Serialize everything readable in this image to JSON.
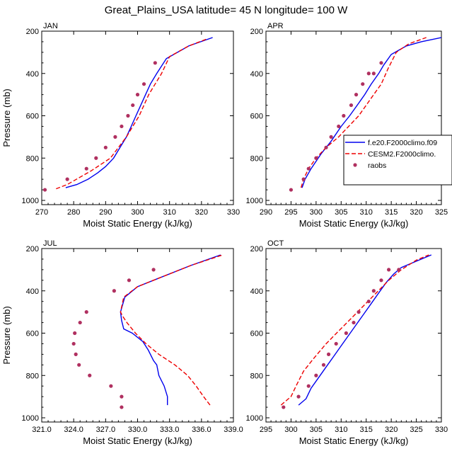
{
  "figure": {
    "title": "Great_Plains_USA  latitude= 45 N longitude= 100 W"
  },
  "colors": {
    "model1": "#0000ee",
    "model2": "#ee0000",
    "raobs": "#b03060",
    "axis": "#000000"
  },
  "legend": {
    "entries": [
      {
        "label": "f.e20.F2000climo.f09",
        "series": "model1"
      },
      {
        "label": "CESM2.F2000climo.",
        "series": "model2"
      },
      {
        "label": "raobs",
        "series": "raobs"
      }
    ]
  },
  "chart_data": [
    {
      "type": "line",
      "panel": "JAN",
      "title": "JAN",
      "xlabel": "Moist Static Energy (kJ/kg)",
      "ylabel": "Pressure (mb)",
      "xlim": [
        270,
        330
      ],
      "ylim": [
        1020,
        200
      ],
      "xticks": [
        270,
        280,
        290,
        300,
        310,
        320,
        330
      ],
      "xtick_labels": [
        "270",
        "280",
        "290",
        "300",
        "310",
        "320",
        "330"
      ],
      "yticks": [
        200,
        400,
        600,
        800,
        1000
      ],
      "ytick_labels": [
        "200",
        "400",
        "600",
        "800",
        "1000"
      ],
      "series": [
        {
          "name": "f.e20.F2000climo.f09",
          "style": "solid",
          "color_key": "model1",
          "x": [
            277.5,
            281,
            284.5,
            287.5,
            290,
            292.5,
            294.5,
            296.5,
            298,
            299.5,
            301,
            302.5,
            304,
            306,
            309,
            316,
            323.5
          ],
          "y": [
            940,
            925,
            900,
            870,
            840,
            800,
            750,
            700,
            650,
            600,
            550,
            500,
            450,
            400,
            330,
            270,
            230
          ]
        },
        {
          "name": "CESM2.F2000climo.",
          "style": "dashed",
          "color_key": "model2",
          "x": [
            274.5,
            278,
            282,
            285.5,
            288.5,
            291.5,
            294,
            296.5,
            298.5,
            300.5,
            302,
            303.5,
            305.5,
            307.5,
            310,
            316,
            322
          ],
          "y": [
            945,
            925,
            890,
            860,
            830,
            800,
            750,
            700,
            650,
            600,
            550,
            500,
            450,
            400,
            320,
            270,
            235
          ]
        },
        {
          "name": "raobs",
          "style": "points",
          "color_key": "raobs",
          "x": [
            271,
            278,
            284,
            287,
            290,
            293,
            295,
            297,
            298.5,
            300,
            302,
            305.5
          ],
          "y": [
            950,
            900,
            850,
            800,
            750,
            700,
            650,
            600,
            550,
            500,
            450,
            350
          ]
        }
      ]
    },
    {
      "type": "line",
      "panel": "APR",
      "title": "APR",
      "xlabel": "Moist Static Energy (kJ/kg)",
      "ylabel": "",
      "xlim": [
        290,
        325
      ],
      "ylim": [
        1020,
        200
      ],
      "xticks": [
        290,
        295,
        300,
        305,
        310,
        315,
        320,
        325
      ],
      "xtick_labels": [
        "290",
        "295",
        "300",
        "305",
        "310",
        "315",
        "320",
        "325"
      ],
      "yticks": [
        200,
        400,
        600,
        800,
        1000
      ],
      "ytick_labels": [
        "200",
        "400",
        "600",
        "800",
        "1000"
      ],
      "series": [
        {
          "name": "f.e20.F2000climo.f09",
          "style": "solid",
          "color_key": "model1",
          "x": [
            297.2,
            297.8,
            299,
            301,
            303,
            305,
            306.7,
            308.2,
            309.7,
            311,
            312.5,
            313.5,
            315,
            318,
            321,
            325
          ],
          "y": [
            940,
            900,
            850,
            780,
            720,
            650,
            600,
            550,
            500,
            450,
            400,
            360,
            310,
            270,
            250,
            230
          ]
        },
        {
          "name": "CESM2.F2000climo.",
          "style": "dashed",
          "color_key": "model2",
          "x": [
            297,
            297.5,
            298.5,
            300,
            302,
            304.5,
            306.5,
            308.5,
            310,
            311.5,
            313,
            314.3,
            316,
            318.5,
            322
          ],
          "y": [
            940,
            900,
            850,
            800,
            750,
            700,
            650,
            600,
            550,
            500,
            450,
            380,
            300,
            260,
            230
          ]
        },
        {
          "name": "raobs",
          "style": "points",
          "color_key": "raobs",
          "x": [
            295,
            297.5,
            298.5,
            300,
            302,
            303,
            304.5,
            305.5,
            307,
            308,
            309.3,
            310.5,
            311.5,
            313
          ],
          "y": [
            950,
            900,
            850,
            800,
            750,
            700,
            650,
            600,
            550,
            500,
            450,
            400,
            400,
            350
          ]
        }
      ]
    },
    {
      "type": "line",
      "panel": "JUL",
      "title": "JUL",
      "xlabel": "Moist Static Energy (kJ/kg)",
      "ylabel": "Pressure (mb)",
      "xlim": [
        321,
        339
      ],
      "ylim": [
        1020,
        200
      ],
      "xticks": [
        321,
        324,
        327,
        330,
        333,
        336,
        339
      ],
      "xtick_labels": [
        "321.0",
        "324.0",
        "327.0",
        "330.0",
        "333.0",
        "336.0",
        "339.0"
      ],
      "yticks": [
        200,
        400,
        600,
        800,
        1000
      ],
      "ytick_labels": [
        "200",
        "400",
        "600",
        "800",
        "1000"
      ],
      "series": [
        {
          "name": "f.e20.F2000climo.f09",
          "style": "solid",
          "color_key": "model1",
          "x": [
            332.8,
            332.8,
            332.5,
            332,
            331.8,
            331.5,
            331,
            330.5,
            329.5,
            328.7,
            328.5,
            328.4,
            328.8,
            330,
            332,
            335,
            337.8
          ],
          "y": [
            940,
            900,
            850,
            800,
            750,
            730,
            680,
            640,
            600,
            580,
            540,
            500,
            430,
            380,
            340,
            280,
            230
          ]
        },
        {
          "name": "CESM2.F2000climo.",
          "style": "dashed",
          "color_key": "model2",
          "x": [
            336.8,
            336.2,
            335.5,
            334.7,
            333.5,
            332,
            330.8,
            329.8,
            329,
            328.6,
            328.4,
            328.7,
            330,
            332,
            335,
            338
          ],
          "y": [
            940,
            900,
            850,
            800,
            750,
            700,
            650,
            600,
            550,
            520,
            500,
            430,
            380,
            340,
            280,
            230
          ]
        },
        {
          "name": "raobs",
          "style": "points",
          "color_key": "raobs",
          "x": [
            328.5,
            328.5,
            327.5,
            325.5,
            324.5,
            324.2,
            324,
            324.1,
            324.6,
            325.2,
            327.8,
            329.2,
            331.5
          ],
          "y": [
            950,
            900,
            850,
            800,
            750,
            700,
            650,
            600,
            550,
            500,
            400,
            350,
            300
          ]
        }
      ]
    },
    {
      "type": "line",
      "panel": "OCT",
      "title": "OCT",
      "xlabel": "Moist Static Energy (kJ/kg)",
      "ylabel": "",
      "xlim": [
        295,
        330
      ],
      "ylim": [
        1020,
        200
      ],
      "xticks": [
        295,
        300,
        305,
        310,
        315,
        320,
        325,
        330
      ],
      "xtick_labels": [
        "295",
        "300",
        "305",
        "310",
        "315",
        "320",
        "325",
        "330"
      ],
      "yticks": [
        200,
        400,
        600,
        800,
        1000
      ],
      "ytick_labels": [
        "200",
        "400",
        "600",
        "800",
        "1000"
      ],
      "series": [
        {
          "name": "f.e20.F2000climo.f09",
          "style": "solid",
          "color_key": "model1",
          "x": [
            301.5,
            303,
            304,
            305.5,
            307,
            308.5,
            310,
            311.5,
            313,
            314.5,
            316,
            317.5,
            319,
            320.5,
            322,
            325,
            328
          ],
          "y": [
            940,
            910,
            860,
            810,
            760,
            710,
            660,
            610,
            560,
            510,
            460,
            410,
            360,
            320,
            290,
            260,
            230
          ]
        },
        {
          "name": "CESM2.F2000climo.",
          "style": "dashed",
          "color_key": "model2",
          "x": [
            298,
            300,
            301,
            302.5,
            304.5,
            307,
            309.5,
            312,
            314.5,
            317,
            319.5,
            322,
            325,
            327.5
          ],
          "y": [
            940,
            900,
            850,
            780,
            720,
            650,
            590,
            530,
            470,
            410,
            350,
            300,
            255,
            230
          ]
        },
        {
          "name": "raobs",
          "style": "points",
          "color_key": "raobs",
          "x": [
            298.5,
            301.5,
            303.5,
            305,
            306.5,
            307.5,
            309,
            311,
            312.5,
            313.5,
            315.5,
            316.5,
            318,
            319.5,
            321.5
          ],
          "y": [
            950,
            900,
            850,
            800,
            750,
            700,
            650,
            600,
            550,
            500,
            450,
            400,
            350,
            300,
            300
          ]
        }
      ]
    }
  ]
}
